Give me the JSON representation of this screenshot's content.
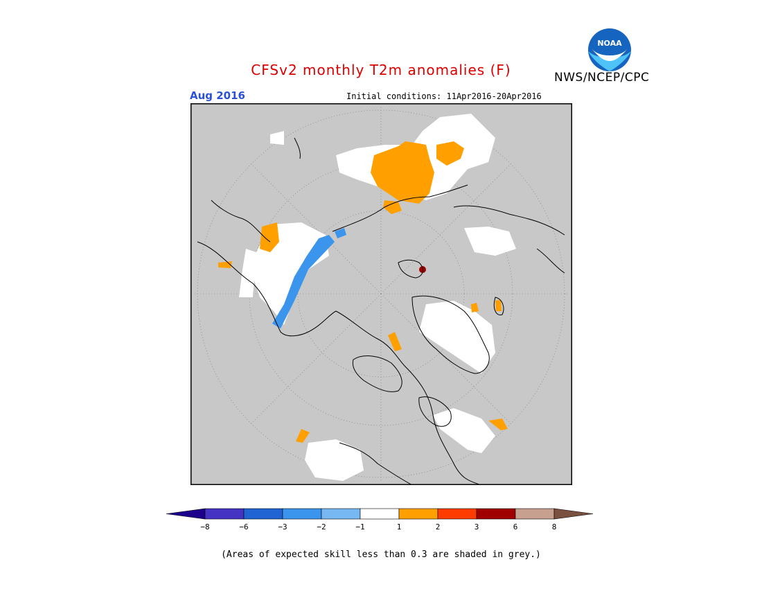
{
  "title": "CFSv2 monthly T2m anomalies (F)",
  "organization": "NWS/NCEP/CPC",
  "logo": {
    "icon": "noaa-logo",
    "text": "NOAA",
    "colors": [
      "#1565c0",
      "#4fc3f7",
      "#ffffff"
    ]
  },
  "target_month": "Aug 2016",
  "initial_conditions": "Initial conditions: 11Apr2016-20Apr2016",
  "map": {
    "projection": "north-polar-stereographic",
    "background_color": "#c8c8c8",
    "features": [
      "coastlines",
      "lat-lon-gridlines"
    ]
  },
  "colorbar": {
    "tick_labels": [
      "-8",
      "-6",
      "-3",
      "-2",
      "-1",
      "1",
      "2",
      "3",
      "6",
      "8"
    ],
    "colors": [
      "#1c008c",
      "#4533c4",
      "#1f64d2",
      "#3c95ec",
      "#78b8f2",
      "#ffffff",
      "#ffa000",
      "#ff3c00",
      "#a00000",
      "#c8a090",
      "#7a5040"
    ]
  },
  "skill_note": "(Areas of expected skill less than 0.3 are shaded in grey.)"
}
